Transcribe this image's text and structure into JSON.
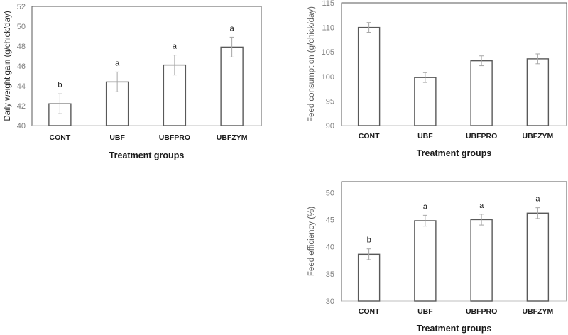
{
  "chart_data": [
    {
      "type": "bar",
      "title": "",
      "xlabel": "Treatment groups",
      "ylabel": "Daily weight gain (g/chick/day)",
      "categories": [
        "CONT",
        "UBF",
        "UBFPRO",
        "UBFZYM"
      ],
      "values": [
        42.2,
        44.4,
        46.1,
        47.9
      ],
      "errors": [
        1.0,
        1.0,
        1.0,
        1.0
      ],
      "significance": [
        "b",
        "a",
        "a",
        "a"
      ],
      "ylim": [
        40,
        52
      ],
      "yticks": [
        40,
        42,
        44,
        46,
        48,
        50,
        52
      ],
      "grid": false,
      "legend": "none"
    },
    {
      "type": "bar",
      "title": "",
      "xlabel": "Treatment groups",
      "ylabel": "Feed consumption (g/chick/day)",
      "categories": [
        "CONT",
        "UBF",
        "UBFPRO",
        "UBFZYM"
      ],
      "values": [
        110.0,
        99.8,
        103.2,
        103.6
      ],
      "errors": [
        1.0,
        1.0,
        1.0,
        1.0
      ],
      "significance": [
        "",
        "",
        "",
        ""
      ],
      "ylim": [
        90,
        115
      ],
      "yticks": [
        90,
        95,
        100,
        105,
        110,
        115
      ],
      "grid": false,
      "legend": "none"
    },
    {
      "type": "bar",
      "title": "",
      "xlabel": "Treatment groups",
      "ylabel": "Feed efficiency (%)",
      "categories": [
        "CONT",
        "UBF",
        "UBFPRO",
        "UBFZYM"
      ],
      "values": [
        38.6,
        44.8,
        45.0,
        46.2
      ],
      "errors": [
        1.0,
        1.0,
        1.0,
        1.0
      ],
      "significance": [
        "b",
        "a",
        "a",
        "a"
      ],
      "ylim": [
        30,
        52
      ],
      "yticks": [
        30,
        35,
        40,
        45,
        50
      ],
      "grid": false,
      "legend": "none"
    }
  ],
  "colors": {
    "bar_fill": "#ffffff",
    "bar_stroke": "#595959",
    "error_bar": "#a6a6a6",
    "tick_label": "#7f7f7f"
  }
}
